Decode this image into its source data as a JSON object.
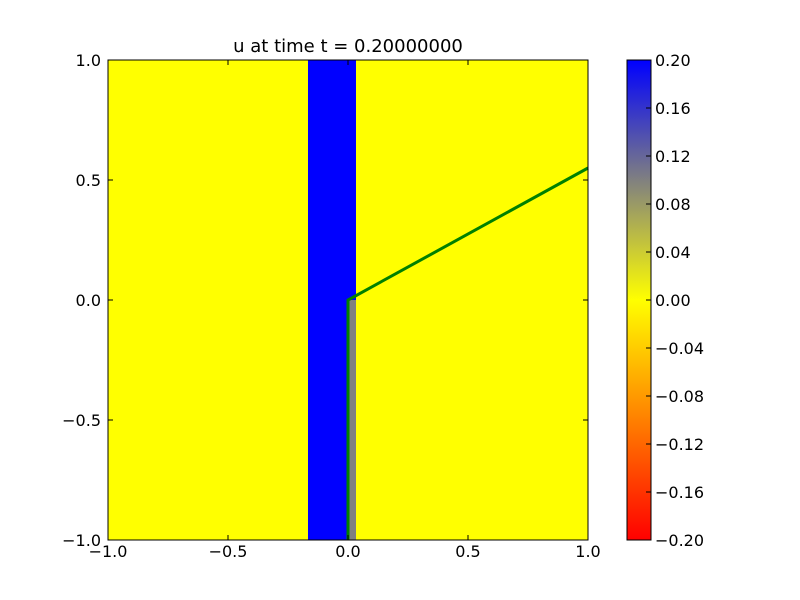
{
  "chart_data": {
    "type": "heatmap",
    "title": "u at time t =     0.20000000",
    "xlabel": "",
    "ylabel": "",
    "xlim": [
      -1.0,
      1.0
    ],
    "ylim": [
      -1.0,
      1.0
    ],
    "x_ticks": [
      "−1.0",
      "−0.5",
      "0.0",
      "0.5",
      "1.0"
    ],
    "y_ticks": [
      "−1.0",
      "−0.5",
      "0.0",
      "0.5",
      "1.0"
    ],
    "background_value": 0.0,
    "regions": [
      {
        "x_range": [
          -0.1667,
          0.0
        ],
        "y_range": [
          -1.0,
          1.0
        ],
        "value": 0.2
      },
      {
        "x_range": [
          0.0,
          0.0333
        ],
        "y_range": [
          -1.0,
          1.0
        ],
        "value": 0.2
      },
      {
        "x_range": [
          0.0,
          0.0333
        ],
        "y_range": [
          -1.0,
          0.0
        ],
        "value": 0.1
      }
    ],
    "curve": {
      "color": "#008000",
      "x": [
        0.0,
        0.0,
        1.0
      ],
      "y": [
        -1.0,
        0.0,
        0.55
      ]
    },
    "colorbar": {
      "range": [
        -0.2,
        0.2
      ],
      "ticks": [
        {
          "value": 0.2,
          "label": "0.20"
        },
        {
          "value": 0.16,
          "label": "0.16"
        },
        {
          "value": 0.12,
          "label": "0.12"
        },
        {
          "value": 0.08,
          "label": "0.08"
        },
        {
          "value": 0.04,
          "label": "0.04"
        },
        {
          "value": 0.0,
          "label": "0.00"
        },
        {
          "value": -0.04,
          "label": "−0.04"
        },
        {
          "value": -0.08,
          "label": "−0.08"
        },
        {
          "value": -0.12,
          "label": "−0.12"
        },
        {
          "value": -0.16,
          "label": "−0.16"
        },
        {
          "value": -0.2,
          "label": "−0.20"
        }
      ],
      "color_stops": [
        {
          "value": -0.2,
          "color": "#ff0000"
        },
        {
          "value": -0.1,
          "color": "#ff8000"
        },
        {
          "value": 0.0,
          "color": "#ffff00"
        },
        {
          "value": 0.1,
          "color": "#808080"
        },
        {
          "value": 0.2,
          "color": "#0000ff"
        }
      ]
    },
    "grid": false,
    "legend": "none"
  }
}
